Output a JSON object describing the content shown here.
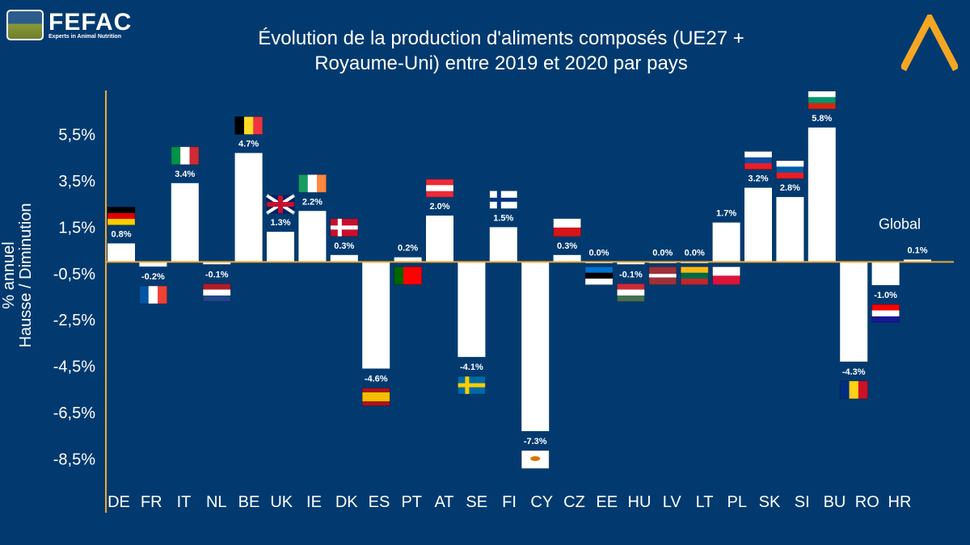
{
  "logo": {
    "name": "FEFAC",
    "tagline": "Experts in Animal Nutrition"
  },
  "title_line1": "Évolution de la production d'aliments composés (UE27 +",
  "title_line2": "Royaume-Uni) entre 2019 et 2020 par pays",
  "colors": {
    "background": "#023a70",
    "axis": "#f0a830",
    "bar": "#ffffff",
    "chevron": "#f5a623"
  },
  "chart_data": {
    "type": "bar",
    "title": "Évolution de la production d'aliments composés (UE27 + Royaume-Uni) entre 2019 et 2020 par pays",
    "ylabel_line1": "% annuel",
    "ylabel_line2": "Hausse / Diminution",
    "ylim": [
      -9.6,
      7.4
    ],
    "yticks": [
      5.5,
      3.5,
      1.5,
      -0.5,
      -2.5,
      -4.5,
      -6.5,
      -8.5
    ],
    "ytick_labels": [
      "5,5%",
      "3,5%",
      "1,5%",
      "-0,5%",
      "-2,5%",
      "-4,5%",
      "-6,5%",
      "-8,5%"
    ],
    "grid": false,
    "categories": [
      "DE",
      "FR",
      "IT",
      "NL",
      "BE",
      "UK",
      "IE",
      "DK",
      "ES",
      "PT",
      "AT",
      "SE",
      "FI",
      "CY",
      "CZ",
      "EE",
      "HU",
      "LV",
      "LT",
      "PL",
      "SK",
      "SI",
      "BU",
      "RO",
      "HR",
      "Global"
    ],
    "values": [
      0.8,
      -0.2,
      3.4,
      -0.1,
      4.7,
      1.3,
      2.2,
      0.3,
      -4.6,
      0.2,
      2.0,
      -4.1,
      1.5,
      -7.3,
      0.3,
      0.0,
      -0.1,
      0.0,
      0.0,
      1.7,
      3.2,
      2.8,
      5.8,
      -4.3,
      -1.0,
      0.1
    ],
    "data_labels": [
      "0.8%",
      "-0.2%",
      "3.4%",
      "-0.1%",
      "4.7%",
      "1.3%",
      "2.2%",
      "0.3%",
      "-4.6%",
      "0.2%",
      "2.0%",
      "-4.1%",
      "1.5%",
      "-7.3%",
      "0.3%",
      "0.0%",
      "-0.1%",
      "0.0%",
      "0.0%",
      "1.7%",
      "3.2%",
      "2.8%",
      "5.8%",
      "-4.3%",
      "-1.0%",
      "0.1%"
    ],
    "annotation": "Global"
  }
}
